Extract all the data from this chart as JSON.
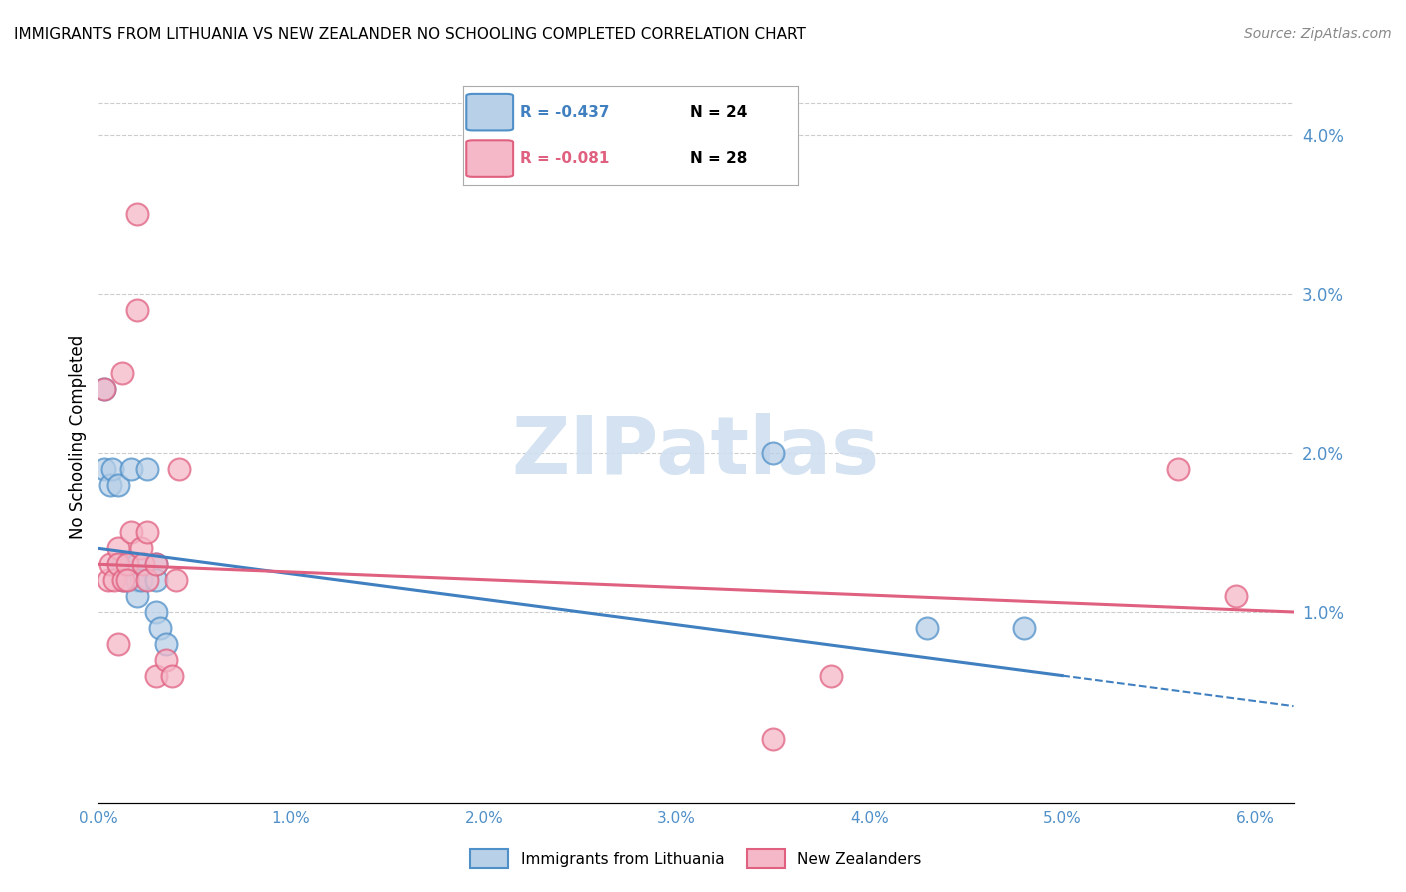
{
  "title": "IMMIGRANTS FROM LITHUANIA VS NEW ZEALANDER NO SCHOOLING COMPLETED CORRELATION CHART",
  "source": "Source: ZipAtlas.com",
  "ylabel": "No Schooling Completed",
  "legend_blue_r": "R = -0.437",
  "legend_blue_n": "N = 24",
  "legend_pink_r": "R = -0.081",
  "legend_pink_n": "N = 28",
  "legend_blue_label": "Immigrants from Lithuania",
  "legend_pink_label": "New Zealanders",
  "blue_face_color": "#b8d0e8",
  "pink_face_color": "#f5b8c8",
  "blue_edge_color": "#5090c8",
  "pink_edge_color": "#e06080",
  "line_blue_color": "#4080c0",
  "line_pink_color": "#e06080",
  "watermark_text": "ZIPatlas",
  "watermark_color": "#d0dff0",
  "xlim": [
    0.0,
    0.062
  ],
  "ylim": [
    -0.002,
    0.044
  ],
  "x_ticks": [
    0.0,
    0.01,
    0.02,
    0.03,
    0.04,
    0.05,
    0.06
  ],
  "y_ticks_right": [
    0.01,
    0.02,
    0.03,
    0.04
  ],
  "blue_x": [
    0.0003,
    0.0003,
    0.0006,
    0.0007,
    0.001,
    0.001,
    0.0012,
    0.0013,
    0.0013,
    0.0015,
    0.0017,
    0.002,
    0.002,
    0.002,
    0.0022,
    0.0025,
    0.003,
    0.003,
    0.003,
    0.0032,
    0.0035,
    0.035,
    0.043,
    0.048
  ],
  "blue_y": [
    0.024,
    0.019,
    0.018,
    0.019,
    0.013,
    0.018,
    0.013,
    0.013,
    0.012,
    0.013,
    0.019,
    0.013,
    0.012,
    0.011,
    0.012,
    0.019,
    0.013,
    0.012,
    0.01,
    0.009,
    0.008,
    0.02,
    0.009,
    0.009
  ],
  "pink_x": [
    0.0003,
    0.0005,
    0.0006,
    0.0008,
    0.001,
    0.001,
    0.001,
    0.0012,
    0.0013,
    0.0015,
    0.0015,
    0.0017,
    0.002,
    0.002,
    0.0022,
    0.0023,
    0.0025,
    0.0025,
    0.003,
    0.003,
    0.0035,
    0.0038,
    0.004,
    0.0042,
    0.035,
    0.038,
    0.056,
    0.059
  ],
  "pink_y": [
    0.024,
    0.012,
    0.013,
    0.012,
    0.014,
    0.013,
    0.008,
    0.025,
    0.012,
    0.013,
    0.012,
    0.015,
    0.035,
    0.029,
    0.014,
    0.013,
    0.015,
    0.012,
    0.013,
    0.006,
    0.007,
    0.006,
    0.012,
    0.019,
    0.002,
    0.006,
    0.019,
    0.011
  ]
}
